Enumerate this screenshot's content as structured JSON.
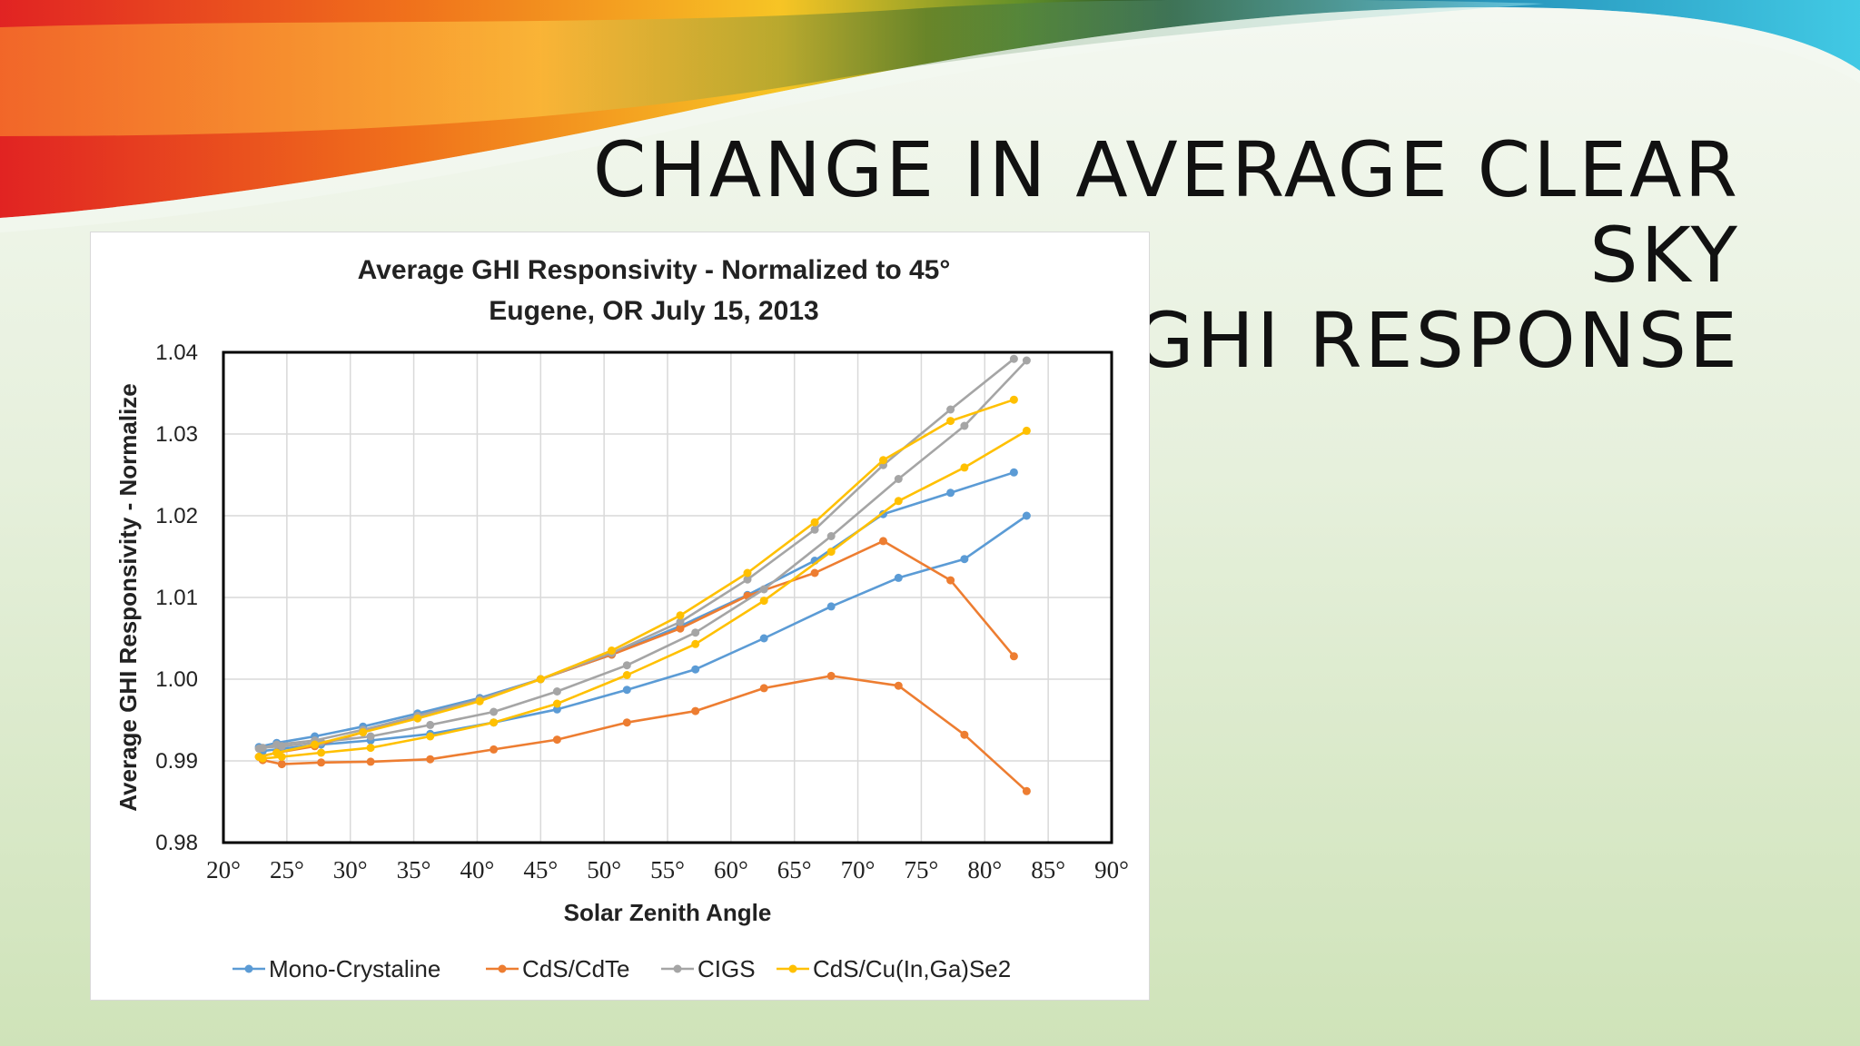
{
  "slide": {
    "title_line1": "CHANGE IN AVERAGE CLEAR SKY",
    "title_line2": "GHI RESPONSE"
  },
  "colors": {
    "Mono-Crystaline": "#5b9bd5",
    "CdS/CdTe": "#ed7d31",
    "CIGS": "#a5a5a5",
    "CdS/Cu(In,Ga)Se2": "#ffc000"
  },
  "chart_data": {
    "type": "scatter",
    "title": "Average GHI Responsivity - Normalized to 45°",
    "subtitle": "Eugene, OR  July 15, 2013",
    "xlabel": "Solar Zenith Angle",
    "ylabel": "Average GHI Responsivity - Normalize",
    "xlim": [
      20,
      90
    ],
    "ylim": [
      0.98,
      1.04
    ],
    "x_ticks": [
      "20°",
      "25°",
      "30°",
      "35°",
      "40°",
      "45°",
      "50°",
      "55°",
      "60°",
      "65°",
      "70°",
      "75°",
      "80°",
      "85°",
      "90°"
    ],
    "y_ticks": [
      "0.98",
      "0.99",
      "1.00",
      "1.01",
      "1.02",
      "1.03",
      "1.04"
    ],
    "grid": true,
    "legend_position": "bottom",
    "series": [
      {
        "name": "Mono-Crystaline",
        "segments": [
          [
            [
              22.8,
              0.9917
            ],
            [
              24.2,
              0.9922
            ],
            [
              27.2,
              0.993
            ],
            [
              31.0,
              0.9942
            ],
            [
              35.3,
              0.9958
            ],
            [
              40.2,
              0.9977
            ],
            [
              45.0,
              1.0
            ],
            [
              50.6,
              1.003
            ],
            [
              56.0,
              1.0065
            ],
            [
              61.3,
              1.0103
            ],
            [
              66.6,
              1.0145
            ],
            [
              72.0,
              1.0202
            ],
            [
              77.3,
              1.0228
            ],
            [
              82.3,
              1.0253
            ]
          ],
          [
            [
              23.1,
              0.9912
            ],
            [
              24.6,
              0.9915
            ],
            [
              27.7,
              0.992
            ],
            [
              31.6,
              0.9925
            ],
            [
              36.3,
              0.9933
            ],
            [
              41.3,
              0.9947
            ],
            [
              46.3,
              0.9963
            ],
            [
              51.8,
              0.9987
            ],
            [
              57.2,
              1.0012
            ],
            [
              62.6,
              1.005
            ],
            [
              67.9,
              1.0089
            ],
            [
              73.2,
              1.0124
            ],
            [
              78.4,
              1.0147
            ],
            [
              83.3,
              1.02
            ]
          ]
        ]
      },
      {
        "name": "CdS/CdTe",
        "segments": [
          [
            [
              22.8,
              0.9905
            ],
            [
              24.2,
              0.991
            ],
            [
              27.2,
              0.9918
            ],
            [
              31.0,
              0.9935
            ],
            [
              35.3,
              0.9955
            ],
            [
              40.2,
              0.9975
            ],
            [
              45.0,
              1.0
            ],
            [
              50.6,
              1.003
            ],
            [
              56.0,
              1.0062
            ],
            [
              61.3,
              1.0102
            ],
            [
              66.6,
              1.013
            ],
            [
              72.0,
              1.0169
            ],
            [
              77.3,
              1.0121
            ],
            [
              82.3,
              1.0028
            ]
          ],
          [
            [
              23.1,
              0.9901
            ],
            [
              24.6,
              0.9896
            ],
            [
              27.7,
              0.9898
            ],
            [
              31.6,
              0.9899
            ],
            [
              36.3,
              0.9902
            ],
            [
              41.3,
              0.9914
            ],
            [
              46.3,
              0.9926
            ],
            [
              51.8,
              0.9947
            ],
            [
              57.2,
              0.9961
            ],
            [
              62.6,
              0.9989
            ],
            [
              67.9,
              1.0004
            ],
            [
              73.2,
              0.9992
            ],
            [
              78.4,
              0.9932
            ],
            [
              83.3,
              0.9863
            ]
          ]
        ]
      },
      {
        "name": "CIGS",
        "segments": [
          [
            [
              22.8,
              0.9915
            ],
            [
              24.2,
              0.992
            ],
            [
              27.2,
              0.9925
            ],
            [
              31.0,
              0.9938
            ],
            [
              35.3,
              0.9955
            ],
            [
              40.2,
              0.9975
            ],
            [
              45.0,
              1.0
            ],
            [
              50.6,
              1.0032
            ],
            [
              56.0,
              1.007
            ],
            [
              61.3,
              1.0122
            ],
            [
              66.6,
              1.0183
            ],
            [
              72.0,
              1.0262
            ],
            [
              77.3,
              1.033
            ],
            [
              82.3,
              1.0392
            ]
          ],
          [
            [
              23.1,
              0.9916
            ],
            [
              24.6,
              0.9918
            ],
            [
              27.7,
              0.9923
            ],
            [
              31.6,
              0.993
            ],
            [
              36.3,
              0.9944
            ],
            [
              41.3,
              0.996
            ],
            [
              46.3,
              0.9985
            ],
            [
              51.8,
              1.0017
            ],
            [
              57.2,
              1.0057
            ],
            [
              62.6,
              1.011
            ],
            [
              67.9,
              1.0175
            ],
            [
              73.2,
              1.0245
            ],
            [
              78.4,
              1.031
            ],
            [
              83.3,
              1.039
            ]
          ]
        ]
      },
      {
        "name": "CdS/Cu(In,Ga)Se2",
        "segments": [
          [
            [
              22.8,
              0.9905
            ],
            [
              24.2,
              0.991
            ],
            [
              27.2,
              0.992
            ],
            [
              31.0,
              0.9935
            ],
            [
              35.3,
              0.9952
            ],
            [
              40.2,
              0.9973
            ],
            [
              45.0,
              1.0
            ],
            [
              50.6,
              1.0035
            ],
            [
              56.0,
              1.0078
            ],
            [
              61.3,
              1.013
            ],
            [
              66.6,
              1.0192
            ],
            [
              72.0,
              1.0268
            ],
            [
              77.3,
              1.0316
            ],
            [
              82.3,
              1.0342
            ]
          ],
          [
            [
              23.1,
              0.9903
            ],
            [
              24.6,
              0.9905
            ],
            [
              27.7,
              0.991
            ],
            [
              31.6,
              0.9916
            ],
            [
              36.3,
              0.993
            ],
            [
              41.3,
              0.9947
            ],
            [
              46.3,
              0.997
            ],
            [
              51.8,
              1.0005
            ],
            [
              57.2,
              1.0043
            ],
            [
              62.6,
              1.0096
            ],
            [
              67.9,
              1.0156
            ],
            [
              73.2,
              1.0218
            ],
            [
              78.4,
              1.0259
            ],
            [
              83.3,
              1.0304
            ]
          ]
        ]
      }
    ]
  }
}
